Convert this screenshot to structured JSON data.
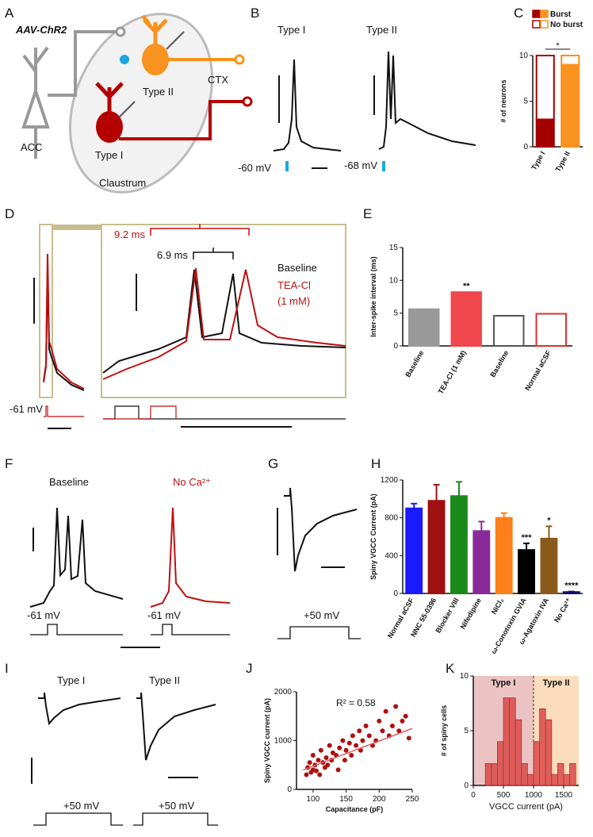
{
  "figure": {
    "panels": [
      "A",
      "B",
      "C",
      "D",
      "E",
      "F",
      "G",
      "H",
      "I",
      "J",
      "K"
    ],
    "a": {
      "virus": "AAV-ChR2",
      "source": "ACC",
      "type2": "Type II",
      "target": "CTX",
      "type1": "Type I",
      "region": "Claustrum"
    },
    "b": {
      "titles": [
        "Type I",
        "Type II"
      ],
      "potentials": [
        "-60 mV",
        "-68 mV"
      ]
    },
    "d": {
      "intervals": [
        "9.2 ms",
        "6.9 ms"
      ],
      "legend": [
        "Baseline",
        "TEA-Cl",
        "(1 mM)"
      ],
      "potential": "-61 mV"
    },
    "f": {
      "titles": [
        "Baseline",
        "No Ca²⁺"
      ],
      "potentials": [
        "-61 mV",
        "-61 mV"
      ]
    },
    "g": {
      "step": "+50 mV"
    },
    "i": {
      "titles": [
        "Type I",
        "Type II"
      ],
      "steps": [
        "+50 mV",
        "+50 mV"
      ]
    }
  },
  "chart_data": [
    {
      "type": "bar",
      "stacked": true,
      "y_label": "# of neurons",
      "categories": [
        "Type I",
        "Type II"
      ],
      "series": [
        {
          "name": "Burst",
          "colors": [
            "#a50000",
            "#f7931e"
          ],
          "values": [
            3,
            9
          ]
        },
        {
          "name": "No burst",
          "colors": [
            "#a50000",
            "#f7931e"
          ],
          "hollow": true,
          "values": [
            7,
            1
          ]
        }
      ],
      "ylim": [
        0,
        10
      ],
      "yticks": [
        0,
        5,
        10
      ],
      "annotation": "*"
    },
    {
      "type": "bar",
      "y_label": "Inter-spike interval (ms)",
      "categories": [
        "Baseline",
        "TEA-Cl (1 mM)",
        "Baseline",
        "Normal aCSF"
      ],
      "values": [
        5.6,
        8.2,
        4.6,
        4.9
      ],
      "colors": [
        "#999999",
        "#f0474d",
        "#555555",
        "#e03030"
      ],
      "hollow": [
        false,
        false,
        true,
        true
      ],
      "significance": [
        null,
        "**",
        null,
        null
      ],
      "ylim": [
        0,
        15
      ],
      "yticks": [
        0,
        5,
        10,
        15
      ]
    },
    {
      "type": "bar",
      "y_label": "Spiny VGCC Current (pA)",
      "categories": [
        "Normal aCSF",
        "NNC 55-0396",
        "Blocker VIII",
        "Nifedipine",
        "NiCl₂",
        "ω-Conotoxin GVIA",
        "ω-Agatoxin IVA",
        "No Ca²⁺"
      ],
      "values": [
        900,
        980,
        1030,
        660,
        800,
        460,
        580,
        15
      ],
      "errors": [
        50,
        170,
        150,
        100,
        50,
        70,
        130,
        5
      ],
      "colors": [
        "#1a1aff",
        "#a01010",
        "#1a8a1a",
        "#8a2a9a",
        "#ff7f1a",
        "#000000",
        "#8a5a1a",
        "#10106a"
      ],
      "significance": [
        null,
        null,
        null,
        null,
        null,
        "***",
        "*",
        "****"
      ],
      "ylim": [
        0,
        1200
      ],
      "yticks": [
        0,
        400,
        800,
        1200
      ]
    },
    {
      "type": "scatter",
      "x_label": "Capacitance (pF)",
      "y_label": "Spiny VGCC current (pA)",
      "annotation": "R² = 0.58",
      "color": "#b01010",
      "x": [
        90,
        92,
        95,
        97,
        100,
        100,
        103,
        105,
        108,
        110,
        112,
        115,
        118,
        120,
        122,
        125,
        128,
        130,
        135,
        138,
        140,
        145,
        148,
        150,
        155,
        158,
        160,
        165,
        170,
        172,
        175,
        180,
        185,
        190,
        195,
        200,
        205,
        210,
        215,
        220,
        225,
        230,
        235,
        240,
        245
      ],
      "y": [
        300,
        450,
        550,
        350,
        400,
        700,
        500,
        380,
        600,
        300,
        800,
        550,
        450,
        650,
        500,
        900,
        600,
        750,
        700,
        400,
        850,
        1000,
        600,
        800,
        950,
        700,
        1100,
        900,
        1200,
        800,
        1000,
        1300,
        1100,
        900,
        1000,
        1400,
        1200,
        1600,
        1100,
        1300,
        1700,
        1200,
        1400,
        1500,
        1050
      ],
      "trend": {
        "x": [
          85,
          250
        ],
        "y": [
          400,
          1250
        ]
      },
      "xlim": [
        75,
        250
      ],
      "xticks": [
        100,
        150,
        200,
        250
      ],
      "ylim": [
        0,
        2000
      ],
      "yticks": [
        0,
        1000,
        2000
      ]
    },
    {
      "type": "histogram",
      "x_label": "VGCC current (pA)",
      "y_label": "# of spiny cells",
      "color": "#d94a4a",
      "bins": [
        200,
        300,
        400,
        500,
        600,
        700,
        800,
        900,
        1000,
        1100,
        1200,
        1300,
        1400,
        1500,
        1600,
        1700
      ],
      "counts": [
        2,
        2,
        4,
        8,
        8,
        6,
        2,
        1,
        4,
        7,
        6,
        1,
        2,
        1,
        2
      ],
      "regions": [
        {
          "label": "Type I",
          "range": [
            0,
            1000
          ],
          "color": "#ecc3c3"
        },
        {
          "label": "Type II",
          "range": [
            1000,
            1750
          ],
          "color": "#fbdcbc"
        }
      ],
      "xlim": [
        0,
        1750
      ],
      "xticks": [
        0,
        500,
        1000,
        1500
      ],
      "ylim": [
        0,
        10
      ],
      "yticks": [
        0,
        5,
        10
      ]
    }
  ]
}
